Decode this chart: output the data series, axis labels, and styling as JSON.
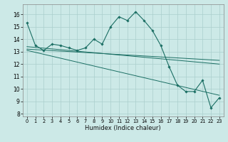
{
  "title": "",
  "xlabel": "Humidex (Indice chaleur)",
  "xlim": [
    -0.5,
    23.5
  ],
  "ylim": [
    7.8,
    16.8
  ],
  "yticks": [
    8,
    9,
    10,
    11,
    12,
    13,
    14,
    15,
    16
  ],
  "xticks": [
    0,
    1,
    2,
    3,
    4,
    5,
    6,
    7,
    8,
    9,
    10,
    11,
    12,
    13,
    14,
    15,
    16,
    17,
    18,
    19,
    20,
    21,
    22,
    23
  ],
  "bg_color": "#cce9e7",
  "grid_color": "#aacfcd",
  "line_color": "#1a6e63",
  "main_curve": {
    "x": [
      0,
      1,
      2,
      3,
      4,
      5,
      6,
      7,
      8,
      9,
      10,
      11,
      12,
      13,
      14,
      15,
      16,
      17,
      18,
      19,
      20,
      21,
      22,
      23
    ],
    "y": [
      15.3,
      13.5,
      13.1,
      13.6,
      13.5,
      13.3,
      13.1,
      13.3,
      14.0,
      13.6,
      15.0,
      15.8,
      15.5,
      16.2,
      15.5,
      14.7,
      13.5,
      11.8,
      10.3,
      9.8,
      9.8,
      10.7,
      8.5,
      9.3
    ]
  },
  "trend_lines": [
    {
      "x": [
        0,
        23
      ],
      "y": [
        13.4,
        12.0
      ]
    },
    {
      "x": [
        0,
        23
      ],
      "y": [
        13.2,
        12.3
      ]
    },
    {
      "x": [
        0,
        23
      ],
      "y": [
        13.1,
        9.5
      ]
    }
  ]
}
